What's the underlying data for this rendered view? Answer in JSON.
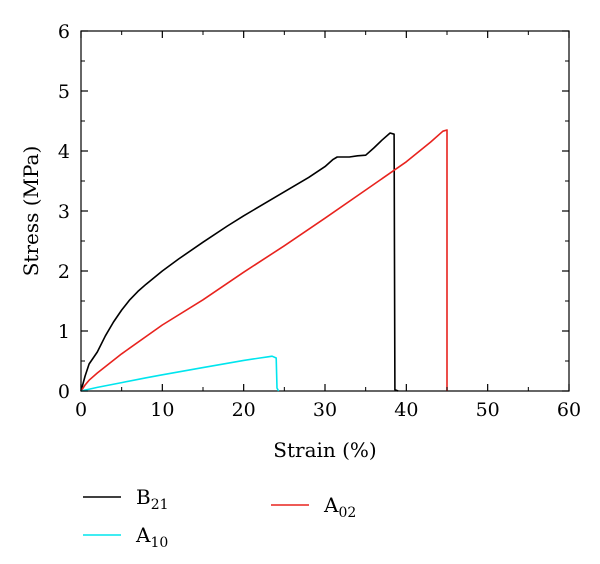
{
  "chart_data": {
    "type": "line",
    "xlabel": "Strain (%)",
    "ylabel": "Stress (MPa)",
    "xlim": [
      0,
      60
    ],
    "ylim": [
      0,
      6
    ],
    "x_ticks": [
      "0",
      "10",
      "20",
      "30",
      "40",
      "50",
      "60"
    ],
    "y_ticks": [
      "0",
      "1",
      "2",
      "3",
      "4",
      "5",
      "6"
    ],
    "grid": false,
    "legend_position": "bottom",
    "series": [
      {
        "name": "B",
        "name_sub": "21",
        "color": "#000000",
        "points": [
          [
            0,
            0
          ],
          [
            0.5,
            0.25
          ],
          [
            1,
            0.45
          ],
          [
            1.5,
            0.55
          ],
          [
            2,
            0.65
          ],
          [
            3,
            0.92
          ],
          [
            4,
            1.15
          ],
          [
            5,
            1.35
          ],
          [
            6,
            1.52
          ],
          [
            7,
            1.66
          ],
          [
            8,
            1.78
          ],
          [
            10,
            2.0
          ],
          [
            12,
            2.2
          ],
          [
            15,
            2.48
          ],
          [
            18,
            2.75
          ],
          [
            20,
            2.92
          ],
          [
            25,
            3.32
          ],
          [
            28,
            3.56
          ],
          [
            30,
            3.74
          ],
          [
            31,
            3.86
          ],
          [
            31.5,
            3.9
          ],
          [
            33,
            3.9
          ],
          [
            34,
            3.92
          ],
          [
            35,
            3.93
          ],
          [
            36,
            4.05
          ],
          [
            37,
            4.18
          ],
          [
            38,
            4.3
          ],
          [
            38.5,
            4.28
          ],
          [
            38.6,
            0.02
          ],
          [
            39,
            0
          ]
        ]
      },
      {
        "name": "A",
        "name_sub": "02",
        "color": "#e8231e",
        "points": [
          [
            0,
            0
          ],
          [
            0.5,
            0.1
          ],
          [
            1,
            0.18
          ],
          [
            2,
            0.3
          ],
          [
            5,
            0.62
          ],
          [
            10,
            1.1
          ],
          [
            15,
            1.52
          ],
          [
            20,
            1.98
          ],
          [
            25,
            2.42
          ],
          [
            30,
            2.88
          ],
          [
            35,
            3.35
          ],
          [
            40,
            3.82
          ],
          [
            43,
            4.15
          ],
          [
            44.5,
            4.33
          ],
          [
            45,
            4.35
          ],
          [
            45,
            0
          ]
        ]
      },
      {
        "name": "A",
        "name_sub": "10",
        "color": "#00e5ee",
        "points": [
          [
            0,
            0
          ],
          [
            2,
            0.06
          ],
          [
            5,
            0.14
          ],
          [
            8,
            0.22
          ],
          [
            10,
            0.27
          ],
          [
            15,
            0.39
          ],
          [
            20,
            0.51
          ],
          [
            22,
            0.55
          ],
          [
            23,
            0.57
          ],
          [
            23.5,
            0.58
          ],
          [
            24,
            0.55
          ],
          [
            24.1,
            0.05
          ],
          [
            24.3,
            0
          ]
        ]
      }
    ]
  }
}
